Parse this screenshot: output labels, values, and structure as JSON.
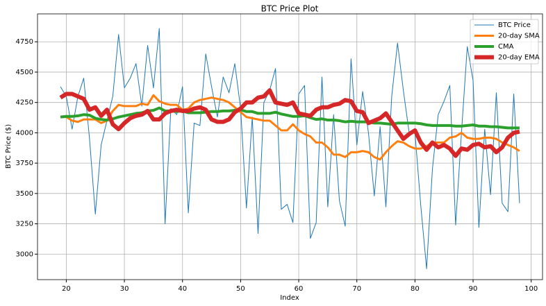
{
  "chart_data": {
    "type": "line",
    "title": "BTC Price Plot",
    "x_label": "Index",
    "y_label": "BTC Price ($)",
    "x": [
      19,
      20,
      21,
      22,
      23,
      24,
      25,
      26,
      27,
      28,
      29,
      30,
      31,
      32,
      33,
      34,
      35,
      36,
      37,
      38,
      39,
      40,
      41,
      42,
      43,
      44,
      45,
      46,
      47,
      48,
      49,
      50,
      51,
      52,
      53,
      54,
      55,
      56,
      57,
      58,
      59,
      60,
      61,
      62,
      63,
      64,
      65,
      66,
      67,
      68,
      69,
      70,
      71,
      72,
      73,
      74,
      75,
      76,
      77,
      78,
      79,
      80,
      81,
      82,
      83,
      84,
      85,
      86,
      87,
      88,
      89,
      90,
      91,
      92,
      93,
      94,
      95,
      96,
      97,
      98
    ],
    "series": [
      {
        "name": "BTC Price",
        "color": "#1f77b4",
        "width": 1,
        "values": [
          4380,
          4300,
          4030,
          4300,
          4450,
          3950,
          3330,
          3900,
          4100,
          4300,
          4810,
          4370,
          4450,
          4570,
          4220,
          4720,
          4370,
          4860,
          3250,
          4200,
          4150,
          4380,
          3340,
          4080,
          4060,
          4650,
          4380,
          4130,
          4460,
          4330,
          4570,
          4200,
          3380,
          4130,
          3170,
          4250,
          4350,
          4530,
          3370,
          3410,
          3260,
          4320,
          4390,
          3130,
          3260,
          4460,
          3390,
          4150,
          3440,
          3230,
          4610,
          3900,
          4340,
          4000,
          3480,
          4050,
          3390,
          4300,
          4740,
          4350,
          4000,
          4000,
          3400,
          2880,
          3700,
          4150,
          4260,
          4390,
          3240,
          4000,
          4710,
          4430,
          3220,
          4030,
          3490,
          4330,
          3420,
          3350,
          4320,
          3420
        ]
      },
      {
        "name": "20-day SMA",
        "color": "#ff7f0e",
        "width": 3,
        "values": [
          4130,
          4130,
          4100,
          4090,
          4110,
          4110,
          4110,
          4080,
          4100,
          4180,
          4230,
          4220,
          4220,
          4220,
          4240,
          4230,
          4310,
          4260,
          4240,
          4230,
          4230,
          4190,
          4200,
          4250,
          4270,
          4280,
          4290,
          4280,
          4270,
          4250,
          4210,
          4170,
          4130,
          4120,
          4110,
          4100,
          4100,
          4060,
          4020,
          4020,
          4070,
          4020,
          3990,
          3970,
          3920,
          3920,
          3880,
          3820,
          3820,
          3800,
          3840,
          3840,
          3850,
          3840,
          3800,
          3780,
          3840,
          3890,
          3930,
          3920,
          3890,
          3870,
          3870,
          3890,
          3920,
          3920,
          3920,
          3960,
          3970,
          4000,
          3960,
          3950,
          3950,
          3960,
          3960,
          3950,
          3920,
          3900,
          3880,
          3850
        ]
      },
      {
        "name": "CMA",
        "color": "#2ca02c",
        "width": 4,
        "values": [
          4130,
          4135,
          4135,
          4140,
          4150,
          4145,
          4120,
          4110,
          4105,
          4115,
          4130,
          4140,
          4150,
          4160,
          4165,
          4180,
          4185,
          4205,
          4180,
          4180,
          4175,
          4180,
          4165,
          4165,
          4165,
          4170,
          4175,
          4175,
          4180,
          4180,
          4185,
          4190,
          4175,
          4175,
          4160,
          4160,
          4160,
          4170,
          4155,
          4145,
          4135,
          4135,
          4140,
          4125,
          4110,
          4115,
          4105,
          4105,
          4100,
          4090,
          4095,
          4090,
          4090,
          4090,
          4080,
          4080,
          4075,
          4070,
          4080,
          4080,
          4080,
          4080,
          4075,
          4065,
          4060,
          4060,
          4060,
          4060,
          4055,
          4055,
          4060,
          4065,
          4055,
          4055,
          4050,
          4050,
          4045,
          4040,
          4040,
          4040
        ]
      },
      {
        "name": "20-day EMA",
        "color": "#d62728",
        "width": 6,
        "values": [
          4290,
          4320,
          4320,
          4300,
          4280,
          4190,
          4210,
          4140,
          4190,
          4070,
          4030,
          4080,
          4120,
          4140,
          4150,
          4180,
          4110,
          4110,
          4160,
          4180,
          4190,
          4180,
          4180,
          4200,
          4210,
          4190,
          4110,
          4090,
          4090,
          4110,
          4170,
          4200,
          4250,
          4250,
          4290,
          4300,
          4350,
          4250,
          4240,
          4230,
          4250,
          4160,
          4150,
          4140,
          4190,
          4210,
          4210,
          4230,
          4240,
          4270,
          4260,
          4180,
          4170,
          4080,
          4100,
          4120,
          4160,
          4090,
          4020,
          3950,
          3990,
          4020,
          3920,
          3860,
          3920,
          3880,
          3900,
          3870,
          3810,
          3870,
          3860,
          3900,
          3910,
          3880,
          3890,
          3840,
          3880,
          3960,
          4000,
          4010
        ]
      }
    ],
    "xlim": [
      15.05,
      101.95
    ],
    "xticks": [
      20,
      30,
      40,
      50,
      60,
      70,
      80,
      90,
      100
    ],
    "ylim": [
      2790,
      4980
    ],
    "yticks": [
      3000,
      3250,
      3500,
      3750,
      4000,
      4250,
      4500,
      4750
    ],
    "grid": true,
    "legend": "upper right"
  }
}
